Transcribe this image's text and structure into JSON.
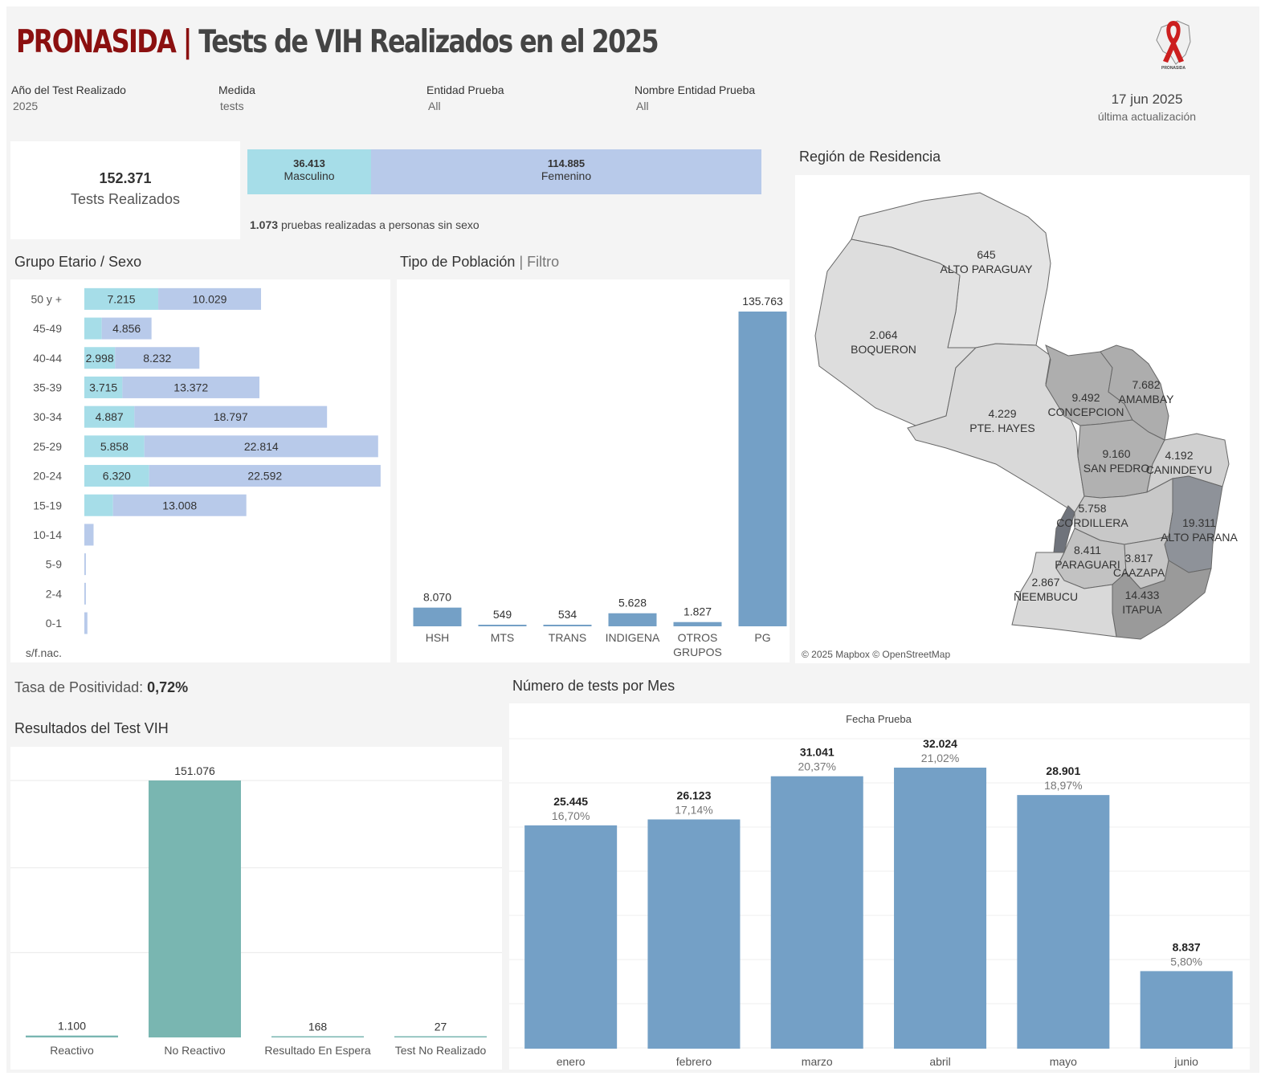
{
  "header": {
    "brand": "PRONASIDA",
    "separator": "|",
    "title": "Tests de VIH Realizados en el  2025",
    "logo_icon": "red-ribbon-paraguay-logo-icon",
    "logo_text": "PRONASIDA"
  },
  "filters": [
    {
      "label": "Año del Test Realizado",
      "value": "2025"
    },
    {
      "label": "Medida",
      "value": "tests"
    },
    {
      "label": "Entidad Prueba",
      "value": "All"
    },
    {
      "label": "Nombre Entidad Prueba",
      "value": "All"
    }
  ],
  "update": {
    "date": "17 jun 2025",
    "label": "última actualización"
  },
  "kpi": {
    "value": "152.371",
    "label": "Tests Realizados"
  },
  "sex_split": {
    "male": {
      "value": "36.413",
      "label": "Masculino",
      "count": 36413,
      "color": "#a6dde8"
    },
    "female": {
      "value": "114.885",
      "label": "Femenino",
      "count": 114885,
      "color": "#b8caea"
    },
    "note_value": "1.073",
    "note_text": "pruebas realizadas a personas sin sexo"
  },
  "age_section": {
    "title": "Grupo Etario / Sexo",
    "chart_data": {
      "type": "bar",
      "orientation": "horizontal-stacked",
      "categories": [
        "50 y +",
        "45-49",
        "40-44",
        "35-39",
        "30-34",
        "25-29",
        "20-24",
        "15-19",
        "10-14",
        "5-9",
        "2-4",
        "0-1",
        "s/f.nac."
      ],
      "series": [
        {
          "name": "Masculino",
          "values": [
            7215,
            1700,
            2998,
            3715,
            4887,
            5858,
            6320,
            2800,
            0,
            0,
            0,
            0,
            0
          ],
          "labels": [
            "7.215",
            "",
            "2.998",
            "3.715",
            "4.887",
            "5.858",
            "6.320",
            "",
            "",
            "",
            "",
            "",
            ""
          ],
          "color": "#a6dde8"
        },
        {
          "name": "Femenino",
          "values": [
            10029,
            4856,
            8232,
            13372,
            18797,
            22814,
            22592,
            13008,
            900,
            150,
            150,
            300,
            0
          ],
          "labels": [
            "10.029",
            "4.856",
            "8.232",
            "13.372",
            "18.797",
            "22.814",
            "22.592",
            "13.008",
            "",
            "",
            "",
            "",
            ""
          ],
          "color": "#b8caea"
        }
      ],
      "xlim": [
        0,
        29000
      ]
    }
  },
  "population_section": {
    "title": "Tipo de Población",
    "filter_label": "Filtro",
    "chart_data": {
      "type": "bar",
      "categories": [
        "HSH",
        "MTS",
        "TRANS",
        "INDIGENA",
        "OTROS|GRUPOS",
        "PG"
      ],
      "values": [
        8070,
        549,
        534,
        5628,
        1827,
        135763
      ],
      "labels": [
        "8.070",
        "549",
        "534",
        "5.628",
        "1.827",
        "135.763"
      ],
      "color": "#74a0c6",
      "ylim": [
        0,
        135763
      ]
    }
  },
  "map_section": {
    "title": "Región de Residencia",
    "attribution": "© 2025 Mapbox © OpenStreetMap",
    "regions": [
      {
        "value": "645",
        "name": "ALTO PARAGUAY"
      },
      {
        "value": "2.064",
        "name": "BOQUERON"
      },
      {
        "value": "4.229",
        "name": "PTE. HAYES"
      },
      {
        "value": "9.492",
        "name": "CONCEPCION"
      },
      {
        "value": "7.682",
        "name": "AMAMBAY"
      },
      {
        "value": "9.160",
        "name": "SAN PEDRO"
      },
      {
        "value": "4.192",
        "name": "CANINDEYU"
      },
      {
        "value": "5.758",
        "name": "CORDILLERA"
      },
      {
        "value": "19.311",
        "name": "ALTO PARANA"
      },
      {
        "value": "8.411",
        "name": "PARAGUARI"
      },
      {
        "value": "3.817",
        "name": "CAAZAPA"
      },
      {
        "value": "2.867",
        "name": "ÑEEMBUCU"
      },
      {
        "value": "14.433",
        "name": "ITAPUA"
      }
    ]
  },
  "positivity": {
    "label": "Tasa de Positividad:",
    "value": "0,72%"
  },
  "results_section": {
    "title": "Resultados del Test VIH",
    "chart_data": {
      "type": "bar",
      "categories": [
        "Reactivo",
        "No Reactivo",
        "Resultado En Espera",
        "Test No Realizado"
      ],
      "values": [
        1100,
        151076,
        168,
        27
      ],
      "labels": [
        "1.100",
        "151.076",
        "168",
        "27"
      ],
      "color": "#79b6b1",
      "ylim": [
        0,
        151076
      ]
    }
  },
  "monthly_section": {
    "title": "Número de tests por Mes",
    "axis_title": "Fecha Prueba",
    "chart_data": {
      "type": "bar",
      "categories": [
        "enero",
        "febrero",
        "marzo",
        "abril",
        "mayo",
        "junio"
      ],
      "values": [
        25445,
        26123,
        31041,
        32024,
        28901,
        8837
      ],
      "labels": [
        "25.445",
        "26.123",
        "31.041",
        "32.024",
        "28.901",
        "8.837"
      ],
      "percents": [
        "16,70%",
        "17,14%",
        "20,37%",
        "21,02%",
        "18,97%",
        "5,80%"
      ],
      "color": "#74a0c6",
      "ylim": [
        0,
        32024
      ]
    }
  }
}
